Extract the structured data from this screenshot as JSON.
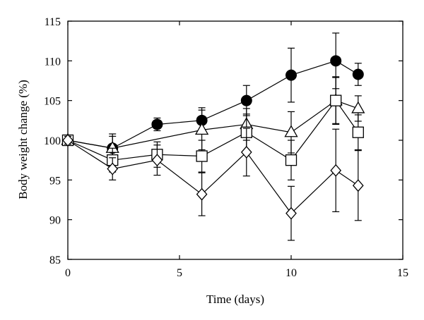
{
  "chart_data": {
    "type": "scatter",
    "title": "",
    "xlabel": "Time (days)",
    "ylabel": "Body weight change (%)",
    "xlim": [
      0,
      15
    ],
    "ylim": [
      85,
      115
    ],
    "xticks": [
      0,
      5,
      10,
      15
    ],
    "yticks": [
      85,
      90,
      95,
      100,
      105,
      110,
      115
    ],
    "grid": false,
    "legend": "none",
    "colors": {
      "axis": "#000000",
      "filled": "#000000",
      "open": "#ffffff"
    },
    "series": [
      {
        "marker": "filled-circle",
        "x": [
          0,
          2,
          4,
          6,
          8,
          10,
          12,
          13
        ],
        "y": [
          100,
          99,
          102,
          102.5,
          105,
          108.2,
          110,
          108.3
        ],
        "err": [
          0.5,
          1.5,
          0.8,
          1.6,
          1.9,
          3.4,
          3.5,
          1.4
        ]
      },
      {
        "marker": "open-triangle",
        "x": [
          0,
          2,
          6,
          8,
          10,
          12,
          13
        ],
        "y": [
          100,
          99,
          101.3,
          102,
          101,
          105,
          104
        ],
        "err": [
          0.5,
          1.8,
          2.5,
          2.0,
          2.6,
          2.9,
          1.6
        ]
      },
      {
        "marker": "open-square",
        "x": [
          0,
          2,
          4,
          6,
          8,
          10,
          12,
          13
        ],
        "y": [
          100,
          97.5,
          98.2,
          98,
          101,
          97.5,
          105,
          101
        ],
        "err": [
          0.5,
          1.5,
          1.6,
          2.0,
          2.3,
          2.5,
          3.0,
          2.2
        ]
      },
      {
        "marker": "open-diamond",
        "x": [
          0,
          2,
          4,
          6,
          8,
          10,
          12,
          13
        ],
        "y": [
          100,
          96.4,
          97.5,
          93.2,
          98.5,
          90.8,
          96.2,
          94.3
        ],
        "err": [
          0.5,
          1.4,
          1.9,
          2.7,
          3.0,
          3.4,
          5.2,
          4.4
        ]
      }
    ]
  }
}
